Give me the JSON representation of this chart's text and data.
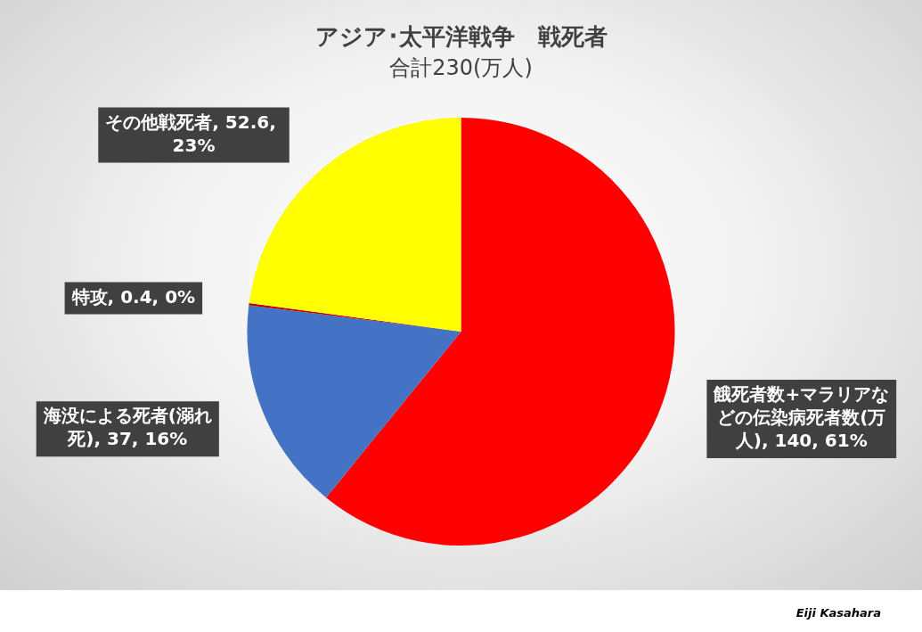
{
  "chart_data": {
    "type": "pie",
    "title": "アジア･太平洋戦争　戦死者",
    "subtitle": "合計230(万人)",
    "categories": [
      "餓死者数+マラリアなどの伝染病死者数(万人)",
      "海没による死者(溺れ死)",
      "特攻",
      "その他戦死者"
    ],
    "values": [
      140,
      37,
      0.4,
      52.6
    ],
    "colors": [
      "#ff0000",
      "#4472c4",
      "#c00000",
      "#ffff00"
    ],
    "value_labels": [
      "140, 61%",
      "37, 16%",
      "0.4, 0%",
      "52.6, 23%"
    ],
    "legend": false,
    "annotations": [
      "Eiji Kasahara"
    ]
  }
}
